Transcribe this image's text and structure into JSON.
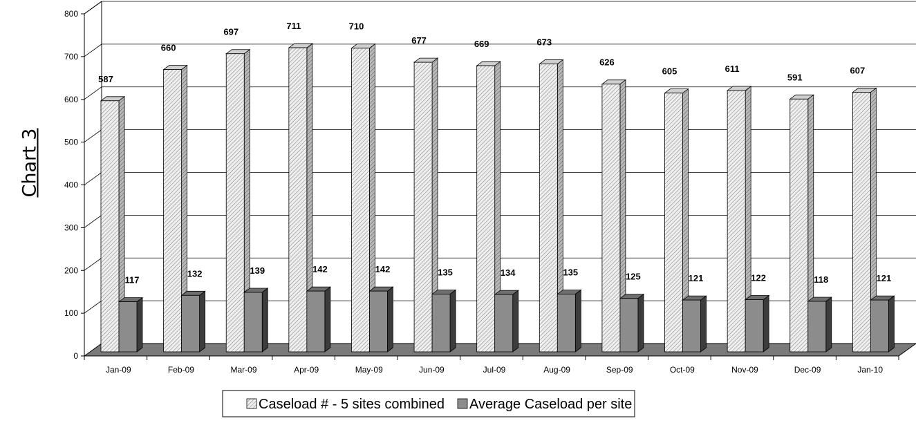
{
  "title": "Chart 3",
  "chart_data": {
    "type": "bar",
    "title": "Chart 3",
    "xlabel": "",
    "ylabel": "",
    "ylim": [
      0,
      800
    ],
    "yticks": [
      0,
      100,
      200,
      300,
      400,
      500,
      600,
      700,
      800
    ],
    "grid": true,
    "legend_position": "bottom",
    "categories": [
      "Jan-09",
      "Feb-09",
      "Mar-09",
      "Apr-09",
      "May-09",
      "Jun-09",
      "Jul-09",
      "Aug-09",
      "Sep-09",
      "Oct-09",
      "Nov-09",
      "Dec-09",
      "Jan-10"
    ],
    "series": [
      {
        "name": "Caseload # - 5 sites combined",
        "color": "#e6e6e6",
        "pattern": "diagonal-hatch",
        "values": [
          587,
          660,
          697,
          711,
          710,
          677,
          669,
          673,
          626,
          605,
          611,
          591,
          607
        ]
      },
      {
        "name": "Average Caseload per site",
        "color": "#8c8c8c",
        "pattern": "solid",
        "values": [
          117,
          132,
          139,
          142,
          142,
          135,
          134,
          135,
          125,
          121,
          122,
          118,
          121
        ]
      }
    ]
  }
}
